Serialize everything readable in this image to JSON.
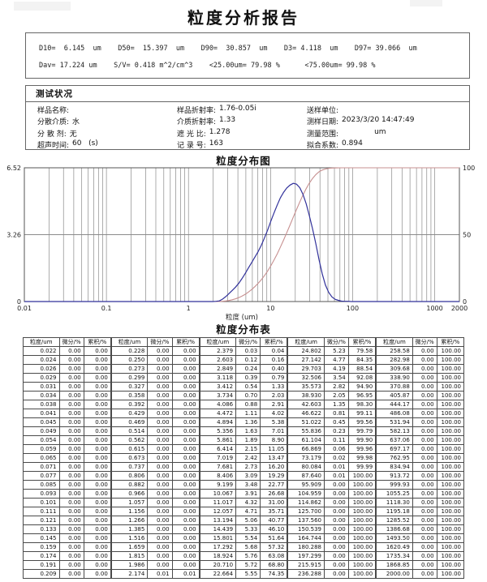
{
  "page_title": "粒度分析报告",
  "summary": {
    "line1": "D10=  6.145  um    D50=  15.397  um    D90=  30.857  um    D3= 4.118  um    D97= 39.066  um",
    "line2": "Dav= 17.224 um    S/V= 0.418 m^2/cm^3    <25.00um= 79.98 %      <75.00um= 99.98 %"
  },
  "status": {
    "title": "测试状况",
    "rows": [
      {
        "cells": [
          {
            "label": "样品名称:",
            "value": ""
          },
          {
            "label": "样品折射率:",
            "value": "1.76-0.05i"
          },
          {
            "label": "送样单位:",
            "value": ""
          }
        ]
      },
      {
        "cells": [
          {
            "label": "分散介质:",
            "value": "水"
          },
          {
            "label": "介质折射率:",
            "value": "1.33"
          },
          {
            "label": "测样日期:",
            "value": "2023/3/20 14:47:49"
          }
        ]
      },
      {
        "cells": [
          {
            "label": "分 散 剂:",
            "value": "无"
          },
          {
            "label": "遮 光 比:",
            "value": "1.278"
          },
          {
            "label": "测量范围:",
            "value": "              um"
          }
        ]
      },
      {
        "cells": [
          {
            "label": "超声时间:",
            "value": "60   (s)"
          },
          {
            "label": "记 录 号:",
            "value": "163"
          },
          {
            "label": "拟合系数:",
            "value": "0.894"
          }
        ]
      }
    ]
  },
  "chart_data": {
    "type": "line",
    "title": "粒度分布图",
    "xlabel": "粒度 (um)",
    "x_scale": "log",
    "xlim": [
      0.01,
      2000
    ],
    "x_ticks": [
      "0.01",
      "0.1",
      "1",
      "10",
      "100",
      "1000",
      "2000"
    ],
    "left_axis": {
      "max": 6.52,
      "tick_labels": [
        "6.52",
        "3.26",
        "0"
      ]
    },
    "right_axis": {
      "max": 100,
      "tick_labels": [
        "100",
        "50",
        "0"
      ]
    },
    "grid": true,
    "colors": {
      "diff": "#32329b",
      "cum": "#c79090",
      "grid": "#8a8a8a",
      "frame": "#555555"
    },
    "series": [
      {
        "name": "微分分布",
        "axis": "left",
        "key": "diff"
      },
      {
        "name": "累积分布",
        "axis": "right",
        "key": "cum"
      }
    ],
    "points": [
      [
        "0.022",
        "0.00",
        "0.00"
      ],
      [
        "0.024",
        "0.00",
        "0.00"
      ],
      [
        "0.026",
        "0.00",
        "0.00"
      ],
      [
        "0.029",
        "0.00",
        "0.00"
      ],
      [
        "0.031",
        "0.00",
        "0.00"
      ],
      [
        "0.034",
        "0.00",
        "0.00"
      ],
      [
        "0.038",
        "0.00",
        "0.00"
      ],
      [
        "0.041",
        "0.00",
        "0.00"
      ],
      [
        "0.045",
        "0.00",
        "0.00"
      ],
      [
        "0.049",
        "0.00",
        "0.00"
      ],
      [
        "0.054",
        "0.00",
        "0.00"
      ],
      [
        "0.059",
        "0.00",
        "0.00"
      ],
      [
        "0.065",
        "0.00",
        "0.00"
      ],
      [
        "0.071",
        "0.00",
        "0.00"
      ],
      [
        "0.077",
        "0.00",
        "0.00"
      ],
      [
        "0.085",
        "0.00",
        "0.00"
      ],
      [
        "0.093",
        "0.00",
        "0.00"
      ],
      [
        "0.101",
        "0.00",
        "0.00"
      ],
      [
        "0.111",
        "0.00",
        "0.00"
      ],
      [
        "0.121",
        "0.00",
        "0.00"
      ],
      [
        "0.133",
        "0.00",
        "0.00"
      ],
      [
        "0.145",
        "0.00",
        "0.00"
      ],
      [
        "0.159",
        "0.00",
        "0.00"
      ],
      [
        "0.174",
        "0.00",
        "0.00"
      ],
      [
        "0.191",
        "0.00",
        "0.00"
      ],
      [
        "0.209",
        "0.00",
        "0.00"
      ],
      [
        "0.228",
        "0.00",
        "0.00"
      ],
      [
        "0.250",
        "0.00",
        "0.00"
      ],
      [
        "0.273",
        "0.00",
        "0.00"
      ],
      [
        "0.299",
        "0.00",
        "0.00"
      ],
      [
        "0.327",
        "0.00",
        "0.00"
      ],
      [
        "0.358",
        "0.00",
        "0.00"
      ],
      [
        "0.392",
        "0.00",
        "0.00"
      ],
      [
        "0.429",
        "0.00",
        "0.00"
      ],
      [
        "0.469",
        "0.00",
        "0.00"
      ],
      [
        "0.514",
        "0.00",
        "0.00"
      ],
      [
        "0.562",
        "0.00",
        "0.00"
      ],
      [
        "0.615",
        "0.00",
        "0.00"
      ],
      [
        "0.673",
        "0.00",
        "0.00"
      ],
      [
        "0.737",
        "0.00",
        "0.00"
      ],
      [
        "0.806",
        "0.00",
        "0.00"
      ],
      [
        "0.882",
        "0.00",
        "0.00"
      ],
      [
        "0.966",
        "0.00",
        "0.00"
      ],
      [
        "1.057",
        "0.00",
        "0.00"
      ],
      [
        "1.156",
        "0.00",
        "0.00"
      ],
      [
        "1.266",
        "0.00",
        "0.00"
      ],
      [
        "1.385",
        "0.00",
        "0.00"
      ],
      [
        "1.516",
        "0.00",
        "0.00"
      ],
      [
        "1.659",
        "0.00",
        "0.00"
      ],
      [
        "1.815",
        "0.00",
        "0.00"
      ],
      [
        "1.986",
        "0.00",
        "0.00"
      ],
      [
        "2.174",
        "0.01",
        "0.01"
      ],
      [
        "2.379",
        "0.03",
        "0.04"
      ],
      [
        "2.603",
        "0.12",
        "0.16"
      ],
      [
        "2.849",
        "0.24",
        "0.40"
      ],
      [
        "3.118",
        "0.39",
        "0.79"
      ],
      [
        "3.412",
        "0.54",
        "1.33"
      ],
      [
        "3.734",
        "0.70",
        "2.03"
      ],
      [
        "4.086",
        "0.88",
        "2.91"
      ],
      [
        "4.472",
        "1.11",
        "4.02"
      ],
      [
        "4.894",
        "1.36",
        "5.38"
      ],
      [
        "5.356",
        "1.63",
        "7.01"
      ],
      [
        "5.861",
        "1.89",
        "8.90"
      ],
      [
        "6.414",
        "2.15",
        "11.05"
      ],
      [
        "7.019",
        "2.42",
        "13.47"
      ],
      [
        "7.681",
        "2.73",
        "16.20"
      ],
      [
        "8.406",
        "3.09",
        "19.29"
      ],
      [
        "9.199",
        "3.48",
        "22.77"
      ],
      [
        "10.067",
        "3.91",
        "26.68"
      ],
      [
        "11.017",
        "4.32",
        "31.00"
      ],
      [
        "12.057",
        "4.71",
        "35.71"
      ],
      [
        "13.194",
        "5.06",
        "40.77"
      ],
      [
        "14.439",
        "5.33",
        "46.10"
      ],
      [
        "15.801",
        "5.54",
        "51.64"
      ],
      [
        "17.292",
        "5.68",
        "57.32"
      ],
      [
        "18.924",
        "5.76",
        "63.08"
      ],
      [
        "20.710",
        "5.72",
        "68.80"
      ],
      [
        "22.664",
        "5.55",
        "74.35"
      ],
      [
        "24.802",
        "5.23",
        "79.58"
      ],
      [
        "27.142",
        "4.77",
        "84.35"
      ],
      [
        "29.703",
        "4.19",
        "88.54"
      ],
      [
        "32.506",
        "3.54",
        "92.08"
      ],
      [
        "35.573",
        "2.82",
        "94.90"
      ],
      [
        "38.930",
        "2.05",
        "96.95"
      ],
      [
        "42.603",
        "1.35",
        "98.30"
      ],
      [
        "46.622",
        "0.81",
        "99.11"
      ],
      [
        "51.022",
        "0.45",
        "99.56"
      ],
      [
        "55.836",
        "0.23",
        "99.79"
      ],
      [
        "61.104",
        "0.11",
        "99.90"
      ],
      [
        "66.869",
        "0.06",
        "99.96"
      ],
      [
        "73.179",
        "0.02",
        "99.98"
      ],
      [
        "80.084",
        "0.01",
        "99.99"
      ],
      [
        "87.640",
        "0.01",
        "100.00"
      ],
      [
        "95.909",
        "0.00",
        "100.00"
      ],
      [
        "104.959",
        "0.00",
        "100.00"
      ],
      [
        "114.862",
        "0.00",
        "100.00"
      ],
      [
        "125.700",
        "0.00",
        "100.00"
      ],
      [
        "137.560",
        "0.00",
        "100.00"
      ],
      [
        "150.539",
        "0.00",
        "100.00"
      ],
      [
        "164.744",
        "0.00",
        "100.00"
      ],
      [
        "180.288",
        "0.00",
        "100.00"
      ],
      [
        "197.299",
        "0.00",
        "100.00"
      ],
      [
        "215.915",
        "0.00",
        "100.00"
      ],
      [
        "236.288",
        "0.00",
        "100.00"
      ],
      [
        "258.58",
        "0.00",
        "100.00"
      ],
      [
        "282.98",
        "0.00",
        "100.00"
      ],
      [
        "309.68",
        "0.00",
        "100.00"
      ],
      [
        "338.90",
        "0.00",
        "100.00"
      ],
      [
        "370.88",
        "0.00",
        "100.00"
      ],
      [
        "405.87",
        "0.00",
        "100.00"
      ],
      [
        "444.17",
        "0.00",
        "100.00"
      ],
      [
        "486.08",
        "0.00",
        "100.00"
      ],
      [
        "531.94",
        "0.00",
        "100.00"
      ],
      [
        "582.13",
        "0.00",
        "100.00"
      ],
      [
        "637.06",
        "0.00",
        "100.00"
      ],
      [
        "697.17",
        "0.00",
        "100.00"
      ],
      [
        "762.95",
        "0.00",
        "100.00"
      ],
      [
        "834.94",
        "0.00",
        "100.00"
      ],
      [
        "913.72",
        "0.00",
        "100.00"
      ],
      [
        "999.93",
        "0.00",
        "100.00"
      ],
      [
        "1055.25",
        "0.00",
        "100.00"
      ],
      [
        "1118.30",
        "0.00",
        "100.00"
      ],
      [
        "1195.18",
        "0.00",
        "100.00"
      ],
      [
        "1285.52",
        "0.00",
        "100.00"
      ],
      [
        "1386.68",
        "0.00",
        "100.00"
      ],
      [
        "1493.50",
        "0.00",
        "100.00"
      ],
      [
        "1620.49",
        "0.00",
        "100.00"
      ],
      [
        "1735.34",
        "0.00",
        "100.00"
      ],
      [
        "1868.85",
        "0.00",
        "100.00"
      ],
      [
        "2000.00",
        "0.00",
        "100.00"
      ]
    ]
  },
  "table": {
    "title": "粒度分布表",
    "headers": [
      "粒度/um",
      "微分/%",
      "累积/%"
    ],
    "groups": 5,
    "rows_per_group": 26
  }
}
